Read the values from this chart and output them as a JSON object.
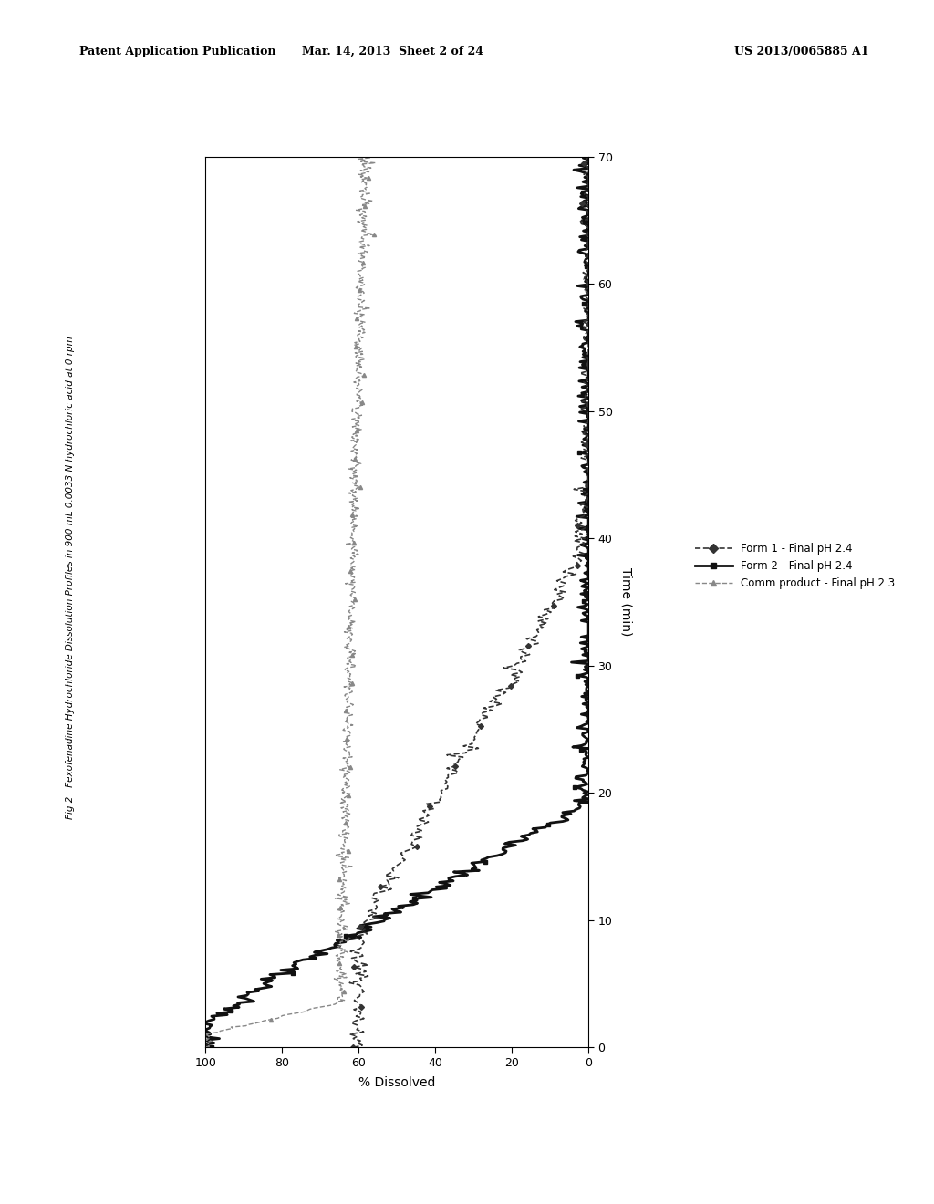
{
  "header_left": "Patent Application Publication",
  "header_center": "Mar. 14, 2013  Sheet 2 of 24",
  "header_right": "US 2013/0065885 A1",
  "fig_label": "Fig 2",
  "fig_title": "Fexofenadine Hydrochloride Dissolution Profiles in 900 mL 0.0033 N hydrochloric acid at 0 rpm",
  "xlabel_rotated": "% Dissolved",
  "ylabel_rotated": "Time (min)",
  "xlim": [
    0,
    100
  ],
  "ylim": [
    0,
    70
  ],
  "xticks": [
    0,
    20,
    40,
    60,
    80,
    100
  ],
  "xticklabels": [
    "0",
    "20",
    "40",
    "60",
    "80",
    "100"
  ],
  "yticks": [
    0,
    10,
    20,
    30,
    40,
    50,
    60,
    70
  ],
  "background_color": "#ffffff",
  "series": [
    {
      "label": "Form 2 - Final pH 2.4",
      "color": "#111111",
      "marker": "s",
      "markersize": 3,
      "linewidth": 2.0,
      "linestyle": "-"
    },
    {
      "label": "Form 1 - Final pH 2.4",
      "color": "#333333",
      "marker": "D",
      "markersize": 3,
      "linewidth": 1.2,
      "linestyle": "--"
    },
    {
      "label": "Comm product - Final pH 2.3",
      "color": "#888888",
      "marker": "^",
      "markersize": 3,
      "linewidth": 1.0,
      "linestyle": "--"
    }
  ]
}
